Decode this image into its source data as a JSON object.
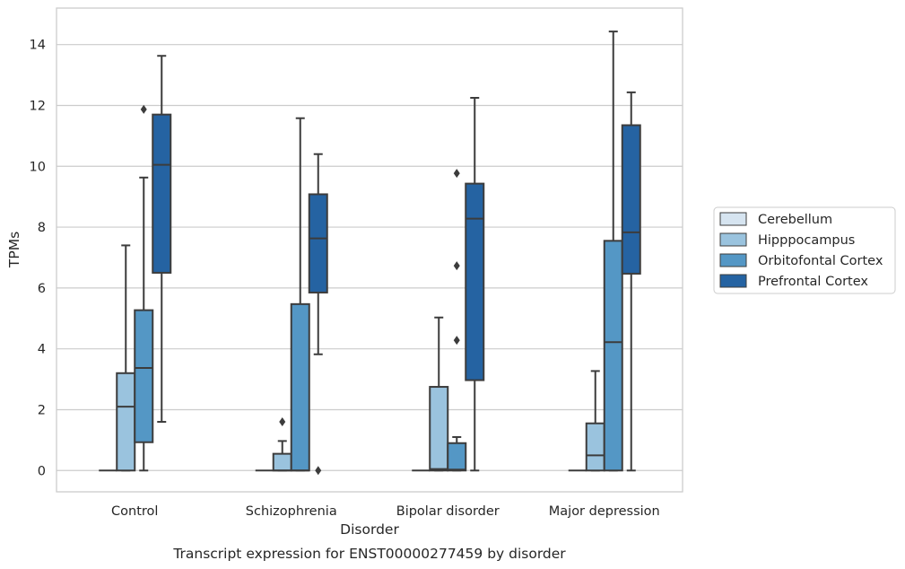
{
  "caption": "Transcript expression for ENST00000277459 by disorder",
  "chart_data": {
    "type": "box",
    "xlabel": "Disorder",
    "ylabel": "TPMs",
    "ylim": [
      -0.7,
      15.2
    ],
    "yticks": [
      0,
      2,
      4,
      6,
      8,
      10,
      12,
      14
    ],
    "grid": "horizontal",
    "legend_position": "right",
    "categories": [
      "Control",
      "Schizophrenia",
      "Bipolar disorder",
      "Major depression"
    ],
    "series": [
      {
        "name": "Cerebellum",
        "color": "#d6e4f0",
        "boxes": [
          {
            "q1": 0,
            "median": 0,
            "q3": 0,
            "whislo": 0,
            "whishi": 0,
            "fliers": []
          },
          {
            "q1": 0,
            "median": 0,
            "q3": 0,
            "whislo": 0,
            "whishi": 0,
            "fliers": []
          },
          {
            "q1": 0,
            "median": 0,
            "q3": 0,
            "whislo": 0,
            "whishi": 0,
            "fliers": []
          },
          {
            "q1": 0,
            "median": 0,
            "q3": 0,
            "whislo": 0,
            "whishi": 0,
            "fliers": []
          }
        ]
      },
      {
        "name": "Hipppocampus",
        "color": "#9ac3de",
        "boxes": [
          {
            "q1": 0,
            "median": 2.1,
            "q3": 3.2,
            "whislo": 0,
            "whishi": 7.4,
            "fliers": []
          },
          {
            "q1": 0,
            "median": 0,
            "q3": 0.55,
            "whislo": 0,
            "whishi": 0.97,
            "fliers": [
              1.6
            ]
          },
          {
            "q1": 0,
            "median": 0.05,
            "q3": 2.75,
            "whislo": 0,
            "whishi": 5.03,
            "fliers": []
          },
          {
            "q1": 0,
            "median": 0.5,
            "q3": 1.55,
            "whislo": 0,
            "whishi": 3.27,
            "fliers": []
          }
        ]
      },
      {
        "name": "Orbitofontal Cortex",
        "color": "#5497c5",
        "boxes": [
          {
            "q1": 0.93,
            "median": 3.37,
            "q3": 5.27,
            "whislo": 0,
            "whishi": 9.63,
            "fliers": [
              11.87
            ]
          },
          {
            "q1": 0,
            "median": 0,
            "q3": 5.47,
            "whislo": 0,
            "whishi": 11.58,
            "fliers": []
          },
          {
            "q1": 0,
            "median": 0.03,
            "q3": 0.9,
            "whislo": 0,
            "whishi": 1.1,
            "fliers": [
              4.28,
              6.73,
              9.77
            ]
          },
          {
            "q1": 0,
            "median": 4.22,
            "q3": 7.55,
            "whislo": 0,
            "whishi": 14.43,
            "fliers": []
          }
        ]
      },
      {
        "name": "Prefrontal Cortex",
        "color": "#2563a2",
        "boxes": [
          {
            "q1": 6.5,
            "median": 10.05,
            "q3": 11.7,
            "whislo": 1.6,
            "whishi": 13.63,
            "fliers": []
          },
          {
            "q1": 5.85,
            "median": 7.63,
            "q3": 9.08,
            "whislo": 3.82,
            "whishi": 10.4,
            "fliers": [
              0
            ]
          },
          {
            "q1": 2.97,
            "median": 8.28,
            "q3": 9.43,
            "whislo": 0,
            "whishi": 12.25,
            "fliers": []
          },
          {
            "q1": 6.47,
            "median": 7.83,
            "q3": 11.35,
            "whislo": 0,
            "whishi": 12.43,
            "fliers": []
          }
        ]
      }
    ]
  }
}
